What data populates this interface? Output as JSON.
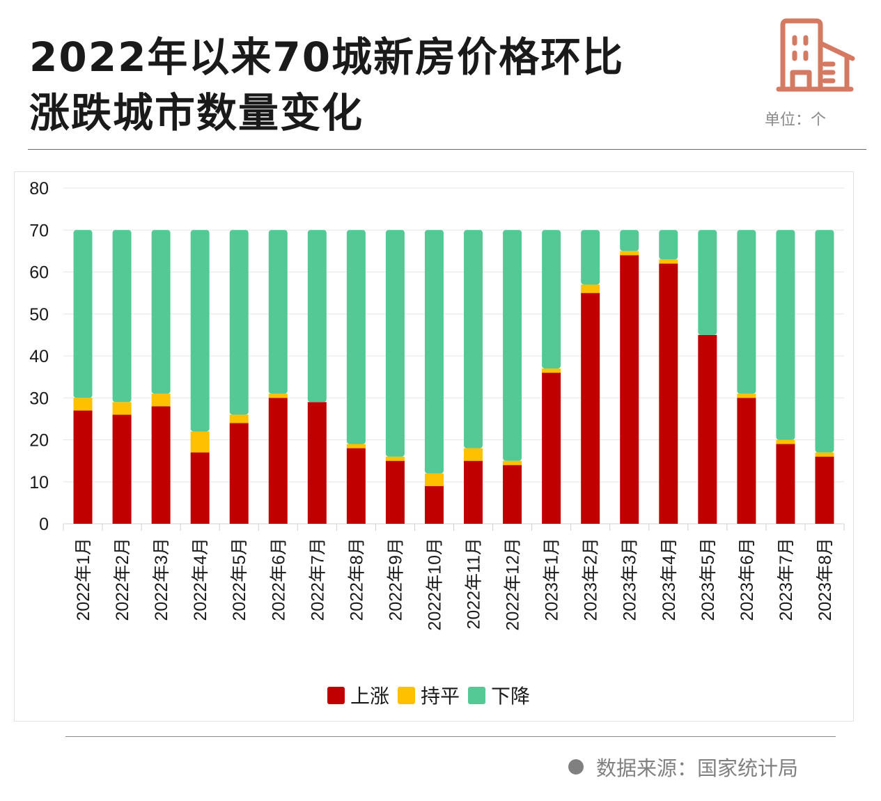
{
  "header": {
    "title_line1": "2022年以来70城新房价格环比",
    "title_line2": "涨跌城市数量变化",
    "unit": "单位：个",
    "icon": "building-icon"
  },
  "colors": {
    "up": "#c00000",
    "flat": "#ffc000",
    "down": "#55c995",
    "icon": "#d47a62"
  },
  "chart_data": {
    "type": "bar",
    "stacked": true,
    "title": "2022年以来70城新房价格环比涨跌城市数量变化",
    "xlabel": "",
    "ylabel": "",
    "ylim": [
      0,
      80
    ],
    "yticks": [
      0,
      10,
      20,
      30,
      40,
      50,
      60,
      70,
      80
    ],
    "grid": true,
    "legend_position": "bottom",
    "categories": [
      "2022年1月",
      "2022年2月",
      "2022年3月",
      "2022年4月",
      "2022年5月",
      "2022年6月",
      "2022年7月",
      "2022年8月",
      "2022年9月",
      "2022年10月",
      "2022年11月",
      "2022年12月",
      "2023年1月",
      "2023年2月",
      "2023年3月",
      "2023年4月",
      "2023年5月",
      "2023年6月",
      "2023年7月",
      "2023年8月"
    ],
    "series": [
      {
        "name": "上涨",
        "color": "#c00000",
        "values": [
          27,
          26,
          28,
          17,
          24,
          30,
          29,
          18,
          15,
          9,
          15,
          14,
          36,
          55,
          64,
          62,
          45,
          30,
          19,
          16
        ]
      },
      {
        "name": "持平",
        "color": "#ffc000",
        "values": [
          3,
          3,
          3,
          5,
          2,
          1,
          0,
          1,
          1,
          3,
          3,
          1,
          1,
          2,
          1,
          1,
          0,
          1,
          1,
          1
        ]
      },
      {
        "name": "下降",
        "color": "#55c995",
        "values": [
          40,
          41,
          39,
          48,
          44,
          39,
          41,
          51,
          54,
          58,
          52,
          55,
          33,
          13,
          5,
          7,
          25,
          39,
          50,
          53
        ]
      }
    ]
  },
  "footer": {
    "source": "数据来源：国家统计局"
  }
}
